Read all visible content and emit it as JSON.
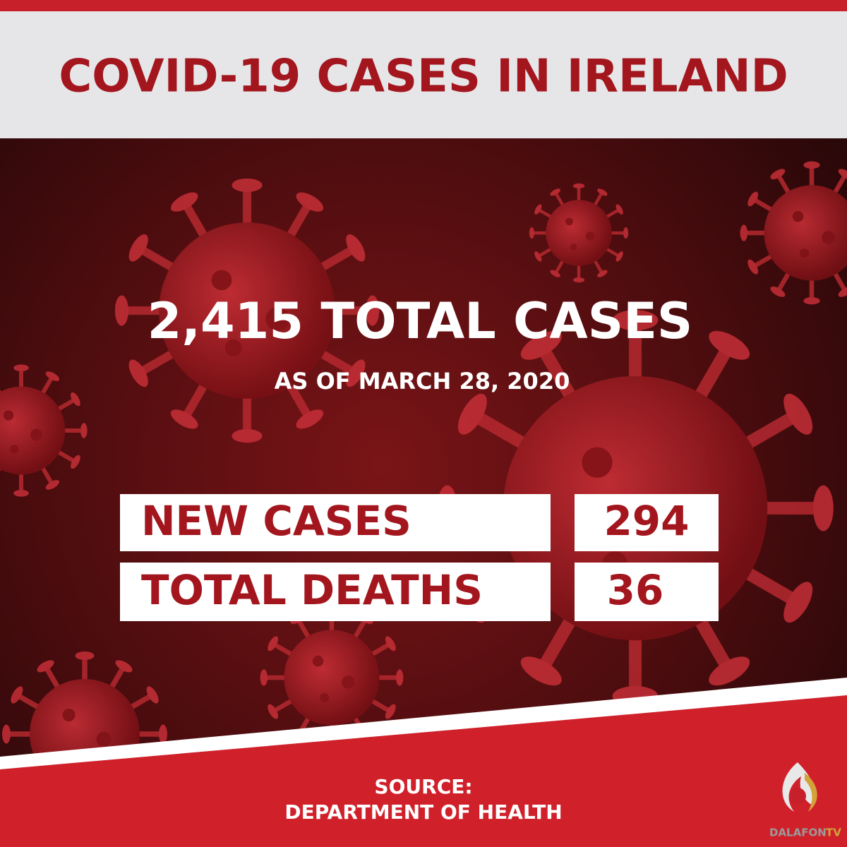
{
  "header": {
    "title": "COVID-19 CASES IN IRELAND"
  },
  "headline": {
    "total": "2,415 TOTAL CASES",
    "date": "AS OF MARCH 28, 2020"
  },
  "table": {
    "rows": [
      [
        "NEW CASES",
        "294"
      ],
      [
        "TOTAL DEATHS",
        "36"
      ]
    ]
  },
  "footer": {
    "source_label": "SOURCE:",
    "source": "DEPARTMENT OF HEALTH"
  },
  "logo": {
    "name": "DALAFON",
    "suffix": "TV"
  }
}
